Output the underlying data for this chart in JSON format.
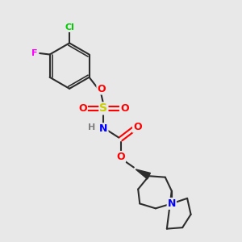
{
  "background_color": "#e8e8e8",
  "bond_color": "#2d2d2d",
  "atom_colors": {
    "Cl": "#00cc00",
    "F": "#ff00ff",
    "O": "#ff0000",
    "S": "#cccc00",
    "N": "#0000ff",
    "H": "#808080",
    "C": "#2d2d2d"
  },
  "figsize": [
    3.0,
    3.0
  ],
  "dpi": 100
}
